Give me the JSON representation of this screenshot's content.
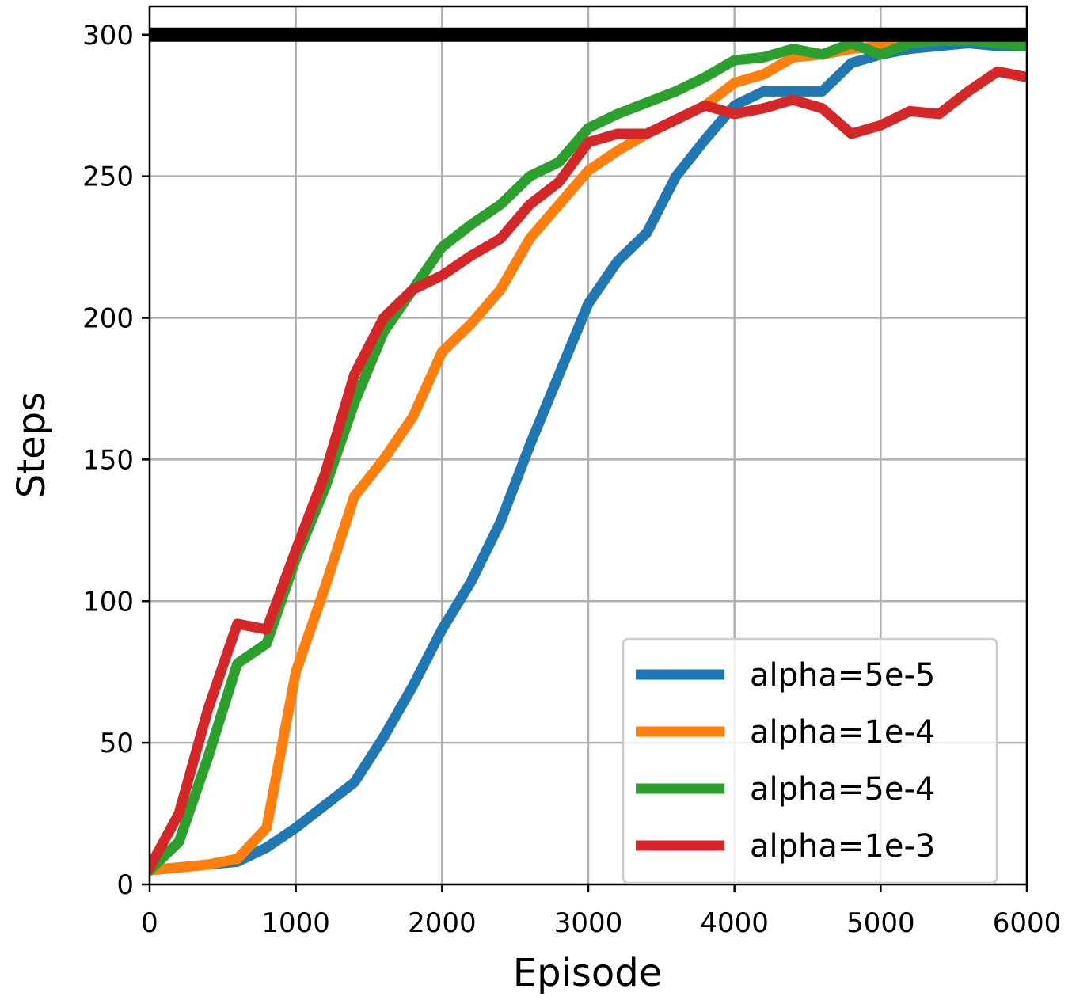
{
  "chart_data": {
    "type": "line",
    "xlabel": "Episode",
    "ylabel": "Steps",
    "x": [
      0,
      200,
      400,
      600,
      800,
      1000,
      1200,
      1400,
      1600,
      1800,
      2000,
      2200,
      2400,
      2600,
      2800,
      3000,
      3200,
      3400,
      3600,
      3800,
      4000,
      4200,
      4400,
      4600,
      4800,
      5000,
      5200,
      5400,
      5600,
      5800,
      6000
    ],
    "series": [
      {
        "name": "alpha=5e-5",
        "color": "#1f77b4",
        "values": [
          5,
          6,
          7,
          8,
          13,
          20,
          28,
          36,
          52,
          70,
          90,
          107,
          128,
          155,
          180,
          205,
          220,
          230,
          250,
          263,
          275,
          280,
          280,
          280,
          290,
          293,
          295,
          296,
          297,
          296,
          296
        ]
      },
      {
        "name": "alpha=1e-4",
        "color": "#ff7f0e",
        "values": [
          5,
          6,
          7,
          9,
          20,
          75,
          105,
          137,
          150,
          165,
          188,
          198,
          210,
          228,
          240,
          252,
          259,
          265,
          270,
          275,
          283,
          286,
          292,
          293,
          295,
          296,
          297,
          298,
          298,
          298,
          297
        ]
      },
      {
        "name": "alpha=5e-4",
        "color": "#2ca02c",
        "values": [
          5,
          15,
          45,
          78,
          85,
          115,
          140,
          170,
          195,
          210,
          225,
          233,
          240,
          250,
          255,
          267,
          272,
          276,
          280,
          285,
          291,
          292,
          295,
          293,
          297,
          293,
          297,
          298,
          298,
          297,
          296
        ]
      },
      {
        "name": "alpha=1e-3",
        "color": "#d62728",
        "values": [
          6,
          25,
          62,
          92,
          90,
          118,
          145,
          180,
          200,
          210,
          215,
          222,
          228,
          240,
          248,
          262,
          265,
          265,
          270,
          275,
          272,
          274,
          277,
          274,
          265,
          268,
          273,
          272,
          280,
          287,
          285
        ]
      }
    ],
    "reference_line": {
      "value": 300,
      "color": "#000000"
    },
    "xlim": [
      0,
      6000
    ],
    "ylim": [
      0,
      310
    ],
    "xticks": [
      0,
      1000,
      2000,
      3000,
      4000,
      5000,
      6000
    ],
    "yticks": [
      0,
      50,
      100,
      150,
      200,
      250,
      300
    ],
    "grid": true,
    "legend": "lower right"
  }
}
